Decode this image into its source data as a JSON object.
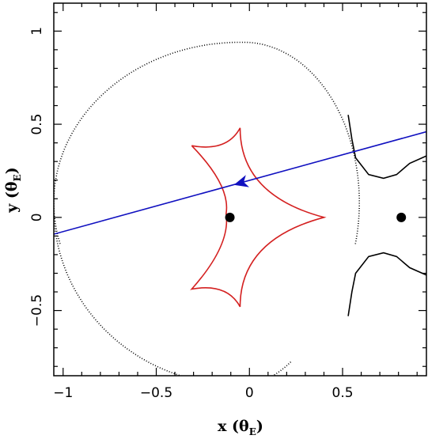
{
  "chart_data": {
    "type": "scatter",
    "title": "",
    "xlabel": {
      "prefix": "x (",
      "symbol": "θ",
      "subscript": "E",
      "suffix": ")"
    },
    "ylabel": {
      "prefix": "y (",
      "symbol": "θ",
      "subscript": "E",
      "suffix": ")"
    },
    "xlim": [
      -1.05,
      0.95
    ],
    "ylim": [
      -0.85,
      1.15
    ],
    "x_ticks": [
      {
        "value": -1,
        "label": "−1"
      },
      {
        "value": -0.5,
        "label": "−0.5"
      },
      {
        "value": 0,
        "label": "0"
      },
      {
        "value": 0.5,
        "label": "0.5"
      }
    ],
    "y_ticks": [
      {
        "value": -0.5,
        "label": "−0.5"
      },
      {
        "value": 0,
        "label": "0"
      },
      {
        "value": 0.5,
        "label": "0.5"
      },
      {
        "value": 1,
        "label": "1"
      }
    ],
    "lenses": [
      {
        "name": "lens-1",
        "x": -0.105,
        "y": 0.0
      },
      {
        "name": "lens-2",
        "x": 0.815,
        "y": 0.0
      }
    ],
    "caustic": {
      "color": "#d42020",
      "cusps": [
        {
          "x": -0.31,
          "y": 0.385
        },
        {
          "x": -0.05,
          "y": 0.48
        },
        {
          "x": 0.4,
          "y": 0.0
        },
        {
          "x": -0.05,
          "y": -0.48
        },
        {
          "x": -0.31,
          "y": -0.385
        },
        {
          "x": -0.125,
          "y": 0.02
        }
      ]
    },
    "critical_curve": {
      "color": "#000000",
      "center": {
        "x": -0.05,
        "y": 0.05
      },
      "radius": {
        "x": 0.98,
        "y": 0.88
      },
      "small_loop_x": 0.72
    },
    "source_trajectory": {
      "color": "#1010c0",
      "points": [
        {
          "x": -1.05,
          "y": -0.09
        },
        {
          "x": 0.95,
          "y": 0.46
        }
      ],
      "arrow_at": {
        "x": -0.01,
        "y": 0.195
      }
    }
  }
}
